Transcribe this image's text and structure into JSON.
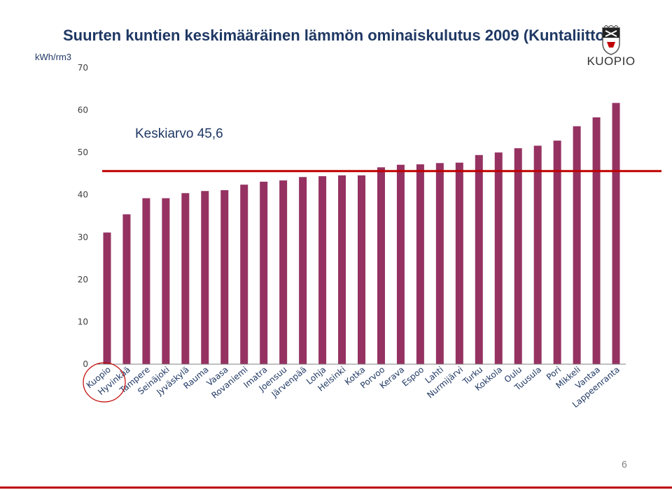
{
  "header": {
    "title": "Suurten kuntien keskimääräinen lämmön ominaiskulutus 2009 (Kuntaliitto)",
    "unit_label": "kWh/rm3",
    "logo_text": "KUOPIO",
    "logo_icon": "coat-of-arms-icon"
  },
  "footer": {
    "page_number": "6"
  },
  "colors": {
    "bar": "#953262",
    "average_line": "#c00000",
    "highlight_circle": "#c00000",
    "title": "#1f3864"
  },
  "chart_data": {
    "type": "bar",
    "title": "Suurten kuntien keskimääräinen lämmön ominaiskulutus 2009 (Kuntaliitto)",
    "ylabel": "kWh/rm3",
    "xlabel": "",
    "ylim": [
      0,
      70
    ],
    "yticks": [
      0,
      10,
      20,
      30,
      40,
      50,
      60,
      70
    ],
    "grid": false,
    "categories": [
      "Kuopio",
      "Hyvinkää",
      "Tampere",
      "Seinäjoki",
      "Jyväskylä",
      "Rauma",
      "Vaasa",
      "Rovaniemi",
      "Imatra",
      "Joensuu",
      "Järvenpää",
      "Lohja",
      "Helsinki",
      "Kotka",
      "Porvoo",
      "Kerava",
      "Espoo",
      "Lahti",
      "Nurmijärvi",
      "Turku",
      "Kokkola",
      "Oulu",
      "Tuusula",
      "Pori",
      "Mikkeli",
      "Vantaa",
      "Lappeenranta"
    ],
    "values": [
      31.1,
      35.4,
      39.2,
      39.2,
      40.4,
      40.9,
      41.1,
      42.4,
      43.1,
      43.4,
      44.2,
      44.4,
      44.6,
      44.6,
      46.5,
      47.1,
      47.2,
      47.5,
      47.6,
      49.4,
      50.0,
      51.0,
      51.6,
      52.8,
      56.2,
      58.3,
      61.7
    ],
    "average": {
      "value": 45.6,
      "label": "Keskiarvo 45,6"
    },
    "highlighted_category": "Kuopio"
  }
}
